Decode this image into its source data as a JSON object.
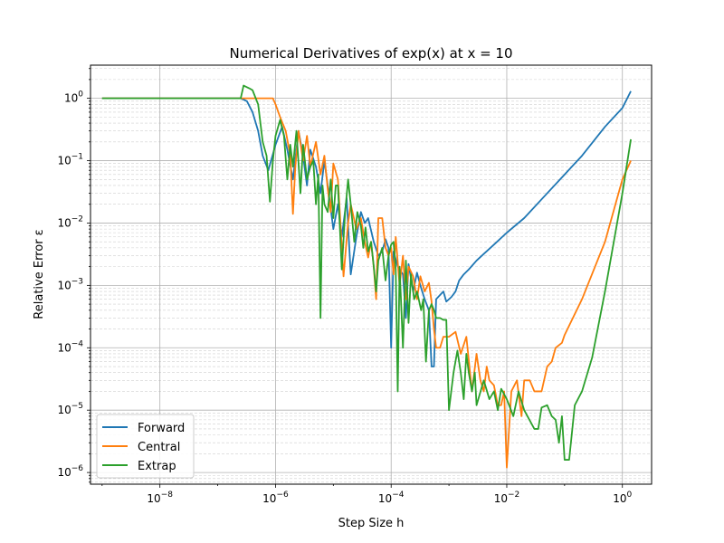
{
  "chart_data": {
    "type": "line",
    "title": "Numerical Derivatives of exp(x) at x = 10",
    "xlabel": "Step Size h",
    "ylabel": "Relative Error ε",
    "x_scale": "log",
    "y_scale": "log",
    "xlim": [
      6.3e-10,
      3.2
    ],
    "ylim": [
      6.5e-07,
      3.4
    ],
    "x_ticks": [
      {
        "mant": "10",
        "exp": "−8",
        "value": 1e-08
      },
      {
        "mant": "10",
        "exp": "−6",
        "value": 1e-06
      },
      {
        "mant": "10",
        "exp": "−4",
        "value": 0.0001
      },
      {
        "mant": "10",
        "exp": "−2",
        "value": 0.01
      },
      {
        "mant": "10",
        "exp": "0",
        "value": 1
      }
    ],
    "y_ticks": [
      {
        "mant": "10",
        "exp": "−6",
        "value": 1e-06
      },
      {
        "mant": "10",
        "exp": "−5",
        "value": 1e-05
      },
      {
        "mant": "10",
        "exp": "−4",
        "value": 0.0001
      },
      {
        "mant": "10",
        "exp": "−3",
        "value": 0.001
      },
      {
        "mant": "10",
        "exp": "−2",
        "value": 0.01
      },
      {
        "mant": "10",
        "exp": "−1",
        "value": 0.1
      },
      {
        "mant": "10",
        "exp": "0",
        "value": 1
      }
    ],
    "grid": "both (major and minor)",
    "legend_position": "lower-left",
    "series": [
      {
        "name": "Forward",
        "color": "#1f77b4",
        "points": [
          [
            1e-09,
            1.0
          ],
          [
            2.5e-07,
            1.0
          ],
          [
            3.2e-07,
            0.9
          ],
          [
            4e-07,
            0.6
          ],
          [
            5e-07,
            0.3
          ],
          [
            6e-07,
            0.12
          ],
          [
            7.5e-07,
            0.07
          ],
          [
            1e-06,
            0.18
          ],
          [
            1.3e-06,
            0.35
          ],
          [
            1.6e-06,
            0.15
          ],
          [
            2e-06,
            0.05
          ],
          [
            2.5e-06,
            0.3
          ],
          [
            3e-06,
            0.12
          ],
          [
            3.5e-06,
            0.04
          ],
          [
            4e-06,
            0.15
          ],
          [
            5e-06,
            0.08
          ],
          [
            6e-06,
            0.03
          ],
          [
            7e-06,
            0.1
          ],
          [
            8e-06,
            0.04
          ],
          [
            1e-05,
            0.008
          ],
          [
            1.2e-05,
            0.02
          ],
          [
            1.4e-05,
            0.006
          ],
          [
            1.7e-05,
            0.025
          ],
          [
            2e-05,
            0.0015
          ],
          [
            2.5e-05,
            0.006
          ],
          [
            3e-05,
            0.015
          ],
          [
            3.5e-05,
            0.01
          ],
          [
            4e-05,
            0.012
          ],
          [
            5e-05,
            0.005
          ],
          [
            6e-05,
            0.003
          ],
          [
            7e-05,
            0.0035
          ],
          [
            8e-05,
            0.0055
          ],
          [
            9e-05,
            0.004
          ],
          [
            0.0001,
            0.0001
          ],
          [
            0.00011,
            0.0035
          ],
          [
            0.00013,
            0.002
          ],
          [
            0.00016,
            0.0015
          ],
          [
            0.00018,
            0.0003
          ],
          [
            0.0002,
            0.0022
          ],
          [
            0.00024,
            0.0008
          ],
          [
            0.00028,
            0.0016
          ],
          [
            0.00032,
            0.001
          ],
          [
            0.00038,
            0.0006
          ],
          [
            0.00045,
            0.0004
          ],
          [
            0.0005,
            5e-05
          ],
          [
            0.00055,
            5e-05
          ],
          [
            0.0006,
            0.0006
          ],
          [
            0.0007,
            0.0007
          ],
          [
            0.0008,
            0.0008
          ],
          [
            0.0009,
            0.00055
          ],
          [
            0.0011,
            0.00065
          ],
          [
            0.0013,
            0.0008
          ],
          [
            0.0015,
            0.0012
          ],
          [
            0.0018,
            0.0015
          ],
          [
            0.0022,
            0.0018
          ],
          [
            0.003,
            0.0025
          ],
          [
            0.004,
            0.0032
          ],
          [
            0.006,
            0.0045
          ],
          [
            0.01,
            0.007
          ],
          [
            0.02,
            0.012
          ],
          [
            0.05,
            0.03
          ],
          [
            0.1,
            0.06
          ],
          [
            0.2,
            0.12
          ],
          [
            0.5,
            0.35
          ],
          [
            1,
            0.7
          ],
          [
            1.4,
            1.3
          ]
        ]
      },
      {
        "name": "Central",
        "color": "#ff7f0e",
        "points": [
          [
            1e-09,
            1.0
          ],
          [
            7e-07,
            1.0
          ],
          [
            9e-07,
            1.0
          ],
          [
            1e-06,
            0.8
          ],
          [
            1.2e-06,
            0.5
          ],
          [
            1.5e-06,
            0.3
          ],
          [
            1.8e-06,
            0.12
          ],
          [
            2e-06,
            0.014
          ],
          [
            2.2e-06,
            0.08
          ],
          [
            2.5e-06,
            0.3
          ],
          [
            3e-06,
            0.1
          ],
          [
            3.5e-06,
            0.25
          ],
          [
            4e-06,
            0.08
          ],
          [
            5e-06,
            0.2
          ],
          [
            6e-06,
            0.06
          ],
          [
            7e-06,
            0.12
          ],
          [
            8e-06,
            0.035
          ],
          [
            9e-06,
            0.015
          ],
          [
            1e-05,
            0.09
          ],
          [
            1.2e-05,
            0.05
          ],
          [
            1.5e-05,
            0.0014
          ],
          [
            1.8e-05,
            0.01
          ],
          [
            2e-05,
            0.02
          ],
          [
            2.5e-05,
            0.008
          ],
          [
            3e-05,
            0.012
          ],
          [
            3.5e-05,
            0.005
          ],
          [
            4e-05,
            0.0028
          ],
          [
            4.5e-05,
            0.005
          ],
          [
            5e-05,
            0.002
          ],
          [
            5.5e-05,
            0.0006
          ],
          [
            6e-05,
            0.012
          ],
          [
            7e-05,
            0.012
          ],
          [
            8e-05,
            0.004
          ],
          [
            9e-05,
            0.003
          ],
          [
            0.0001,
            0.004
          ],
          [
            0.00011,
            0.0015
          ],
          [
            0.00012,
            0.006
          ],
          [
            0.00014,
            0.001
          ],
          [
            0.00016,
            0.003
          ],
          [
            0.00018,
            0.0006
          ],
          [
            0.0002,
            0.002
          ],
          [
            0.00024,
            0.0014
          ],
          [
            0.00028,
            0.0006
          ],
          [
            0.00032,
            0.0014
          ],
          [
            0.00038,
            0.0008
          ],
          [
            0.00045,
            0.0011
          ],
          [
            0.0005,
            0.00055
          ],
          [
            0.00055,
            0.0002
          ],
          [
            0.0006,
            0.0001
          ],
          [
            0.0007,
            0.0001
          ],
          [
            0.0008,
            0.00015
          ],
          [
            0.001,
            0.00015
          ],
          [
            0.0013,
            0.00018
          ],
          [
            0.0016,
            8e-05
          ],
          [
            0.002,
            0.00015
          ],
          [
            0.0025,
            2e-05
          ],
          [
            0.003,
            8e-05
          ],
          [
            0.0035,
            3e-05
          ],
          [
            0.004,
            2e-05
          ],
          [
            0.0045,
            5e-05
          ],
          [
            0.005,
            3e-05
          ],
          [
            0.006,
            2.5e-05
          ],
          [
            0.007,
            1.2e-05
          ],
          [
            0.008,
            1.2e-05
          ],
          [
            0.009,
            2e-05
          ],
          [
            0.01,
            1.2e-06
          ],
          [
            0.012,
            2e-05
          ],
          [
            0.015,
            3e-05
          ],
          [
            0.018,
            8e-06
          ],
          [
            0.02,
            3e-05
          ],
          [
            0.025,
            3e-05
          ],
          [
            0.03,
            2e-05
          ],
          [
            0.04,
            2e-05
          ],
          [
            0.05,
            5e-05
          ],
          [
            0.06,
            6e-05
          ],
          [
            0.07,
            0.0001
          ],
          [
            0.09,
            0.00012
          ],
          [
            0.1,
            0.00016
          ],
          [
            0.2,
            0.0006
          ],
          [
            0.5,
            0.005
          ],
          [
            1,
            0.05
          ],
          [
            1.4,
            0.1
          ]
        ]
      },
      {
        "name": "Extrap",
        "color": "#2ca02c",
        "points": [
          [
            1e-09,
            1.0
          ],
          [
            2.5e-07,
            1.0
          ],
          [
            2.8e-07,
            1.6
          ],
          [
            3.5e-07,
            1.45
          ],
          [
            4e-07,
            1.35
          ],
          [
            5e-07,
            0.8
          ],
          [
            6e-07,
            0.2
          ],
          [
            7e-07,
            0.12
          ],
          [
            8e-07,
            0.022
          ],
          [
            9e-07,
            0.1
          ],
          [
            1e-06,
            0.25
          ],
          [
            1.2e-06,
            0.45
          ],
          [
            1.4e-06,
            0.25
          ],
          [
            1.6e-06,
            0.05
          ],
          [
            1.8e-06,
            0.18
          ],
          [
            2e-06,
            0.08
          ],
          [
            2.3e-06,
            0.3
          ],
          [
            2.7e-06,
            0.03
          ],
          [
            3e-06,
            0.18
          ],
          [
            3.5e-06,
            0.05
          ],
          [
            4e-06,
            0.08
          ],
          [
            4.5e-06,
            0.1
          ],
          [
            5e-06,
            0.02
          ],
          [
            5.5e-06,
            0.06
          ],
          [
            6e-06,
            0.0003
          ],
          [
            6.5e-06,
            0.04
          ],
          [
            7e-06,
            0.02
          ],
          [
            8e-06,
            0.015
          ],
          [
            9e-06,
            0.05
          ],
          [
            1e-05,
            0.012
          ],
          [
            1.1e-05,
            0.04
          ],
          [
            1.2e-05,
            0.04
          ],
          [
            1.4e-05,
            0.0018
          ],
          [
            1.6e-05,
            0.015
          ],
          [
            1.8e-05,
            0.05
          ],
          [
            2e-05,
            0.02
          ],
          [
            2.3e-05,
            0.005
          ],
          [
            2.6e-05,
            0.015
          ],
          [
            3e-05,
            0.009
          ],
          [
            3.3e-05,
            0.004
          ],
          [
            3.6e-05,
            0.0085
          ],
          [
            4e-05,
            0.0035
          ],
          [
            4.5e-05,
            0.005
          ],
          [
            5e-05,
            0.002
          ],
          [
            5.5e-05,
            0.0008
          ],
          [
            6e-05,
            0.0025
          ],
          [
            7e-05,
            0.004
          ],
          [
            8e-05,
            0.0012
          ],
          [
            9e-05,
            0.003
          ],
          [
            0.0001,
            0.0045
          ],
          [
            0.00011,
            0.005
          ],
          [
            0.00012,
            0.0018
          ],
          [
            0.00013,
            2e-05
          ],
          [
            0.00014,
            0.002
          ],
          [
            0.00016,
            0.0001
          ],
          [
            0.00018,
            0.0025
          ],
          [
            0.0002,
            0.00025
          ],
          [
            0.00022,
            0.0015
          ],
          [
            0.00025,
            0.0006
          ],
          [
            0.00028,
            0.0008
          ],
          [
            0.0003,
            0.0006
          ],
          [
            0.00033,
            0.0004
          ],
          [
            0.00036,
            0.0006
          ],
          [
            0.0004,
            6e-05
          ],
          [
            0.00045,
            0.0004
          ],
          [
            0.0005,
            0.0005
          ],
          [
            0.00055,
            0.0004
          ],
          [
            0.0006,
            0.0003
          ],
          [
            0.0007,
            0.0003
          ],
          [
            0.0008,
            0.00028
          ],
          [
            0.0009,
            0.00028
          ],
          [
            0.001,
            1e-05
          ],
          [
            0.0012,
            4e-05
          ],
          [
            0.0014,
            9e-05
          ],
          [
            0.0016,
            4e-05
          ],
          [
            0.0018,
            1.5e-05
          ],
          [
            0.002,
            8e-05
          ],
          [
            0.0022,
            4e-05
          ],
          [
            0.0025,
            2e-05
          ],
          [
            0.0028,
            4e-05
          ],
          [
            0.003,
            1.2e-05
          ],
          [
            0.004,
            3e-05
          ],
          [
            0.005,
            1.5e-05
          ],
          [
            0.006,
            2e-05
          ],
          [
            0.007,
            1e-05
          ],
          [
            0.008,
            2.2e-05
          ],
          [
            0.01,
            1.5e-05
          ],
          [
            0.013,
            8e-06
          ],
          [
            0.016,
            2e-05
          ],
          [
            0.02,
            1e-05
          ],
          [
            0.03,
            5e-06
          ],
          [
            0.035,
            5e-06
          ],
          [
            0.04,
            1.1e-05
          ],
          [
            0.05,
            1.2e-05
          ],
          [
            0.06,
            8e-06
          ],
          [
            0.07,
            7e-06
          ],
          [
            0.08,
            3e-06
          ],
          [
            0.09,
            8e-06
          ],
          [
            0.1,
            1.6e-06
          ],
          [
            0.12,
            1.6e-06
          ],
          [
            0.15,
            1.2e-05
          ],
          [
            0.2,
            2e-05
          ],
          [
            0.3,
            7e-05
          ],
          [
            0.5,
            0.0008
          ],
          [
            1,
            0.03
          ],
          [
            1.4,
            0.22
          ]
        ]
      }
    ]
  }
}
